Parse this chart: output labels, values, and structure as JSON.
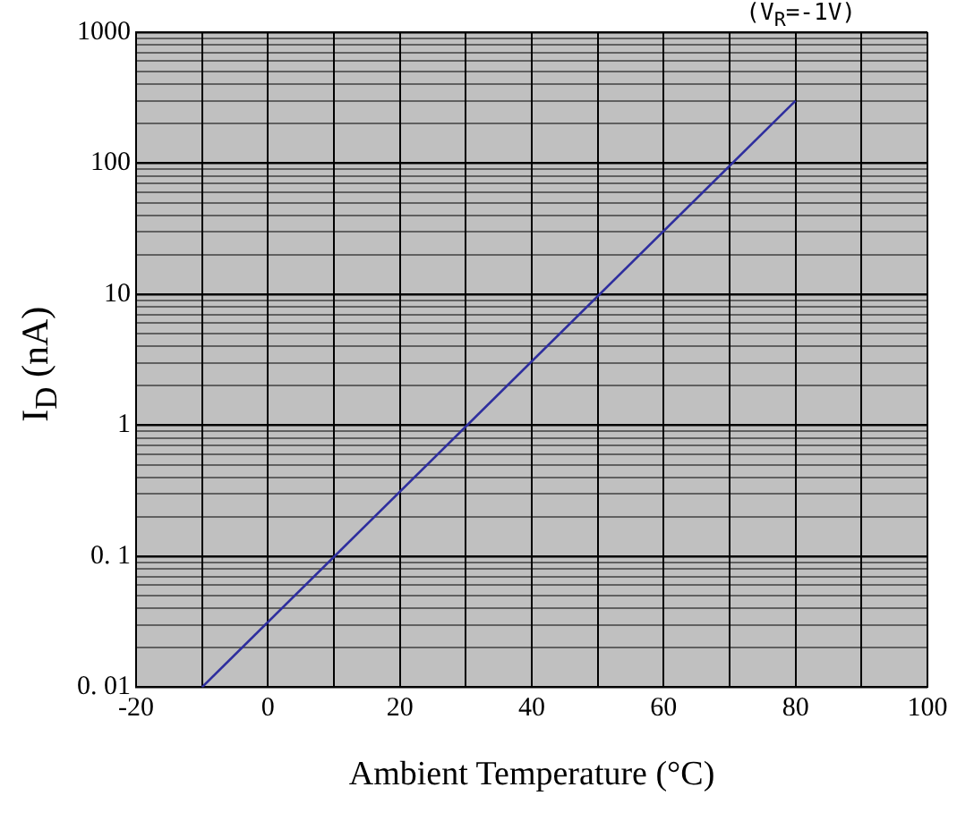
{
  "chart_data": {
    "type": "line",
    "xlabel": "Ambient Temperature (°C)",
    "ylabel": "I$_{D}$ (nA)",
    "annotations": [
      "(V$_{R}$=-1V)"
    ],
    "x": [
      -10,
      80
    ],
    "series": [
      {
        "color": "#2e2e9e",
        "values": [
          0.01,
          300
        ]
      }
    ],
    "xlim": [
      -20,
      100
    ],
    "xticks": [
      -20,
      {
        "value": -10,
        "label": null
      },
      0,
      {
        "value": 10,
        "label": null
      },
      20,
      {
        "value": 30,
        "label": null
      },
      40,
      {
        "value": 50,
        "label": null
      },
      60,
      {
        "value": 70,
        "label": null
      },
      80,
      {
        "value": 90,
        "label": null
      },
      100
    ],
    "ylim": [
      0.01,
      1000
    ],
    "log": true,
    "grid": true,
    "marker": "none",
    "line_style": "solid",
    "yticks": [
      {
        "value": 0.01,
        "label": "0. 01"
      },
      {
        "value": 0.02,
        "label": null
      },
      {
        "value": 0.03,
        "label": null
      },
      {
        "value": 0.04,
        "label": null
      },
      {
        "value": 0.05,
        "label": null
      },
      {
        "value": 0.06,
        "label": null
      },
      {
        "value": 0.07,
        "label": null
      },
      {
        "value": 0.08,
        "label": null
      },
      {
        "value": 0.09,
        "label": null
      },
      {
        "value": 0.1,
        "label": "0. 1"
      },
      {
        "value": 0.2,
        "label": null
      },
      {
        "value": 0.3,
        "label": null
      },
      {
        "value": 0.4,
        "label": null
      },
      {
        "value": 0.5,
        "label": null
      },
      {
        "value": 0.6,
        "label": null
      },
      {
        "value": 0.7,
        "label": null
      },
      {
        "value": 0.8,
        "label": null
      },
      {
        "value": 0.9,
        "label": null
      },
      1,
      {
        "value": 2,
        "label": null
      },
      {
        "value": 3,
        "label": null
      },
      {
        "value": 4,
        "label": null
      },
      {
        "value": 5,
        "label": null
      },
      {
        "value": 6,
        "label": null
      },
      {
        "value": 7,
        "label": null
      },
      {
        "value": 8,
        "label": null
      },
      {
        "value": 9,
        "label": null
      },
      10,
      {
        "value": 20,
        "label": null
      },
      {
        "value": 30,
        "label": null
      },
      {
        "value": 40,
        "label": null
      },
      {
        "value": 50,
        "label": null
      },
      {
        "value": 60,
        "label": null
      },
      {
        "value": 70,
        "label": null
      },
      {
        "value": 80,
        "label": null
      },
      {
        "value": 90,
        "label": null
      },
      100,
      {
        "value": 200,
        "label": null
      },
      {
        "value": 300,
        "label": null
      },
      {
        "value": 400,
        "label": null
      },
      {
        "value": 500,
        "label": null
      },
      {
        "value": 600,
        "label": null
      },
      {
        "value": 700,
        "label": null
      },
      {
        "value": 800,
        "label": null
      },
      {
        "value": 900,
        "label": null
      },
      1000
    ]
  }
}
